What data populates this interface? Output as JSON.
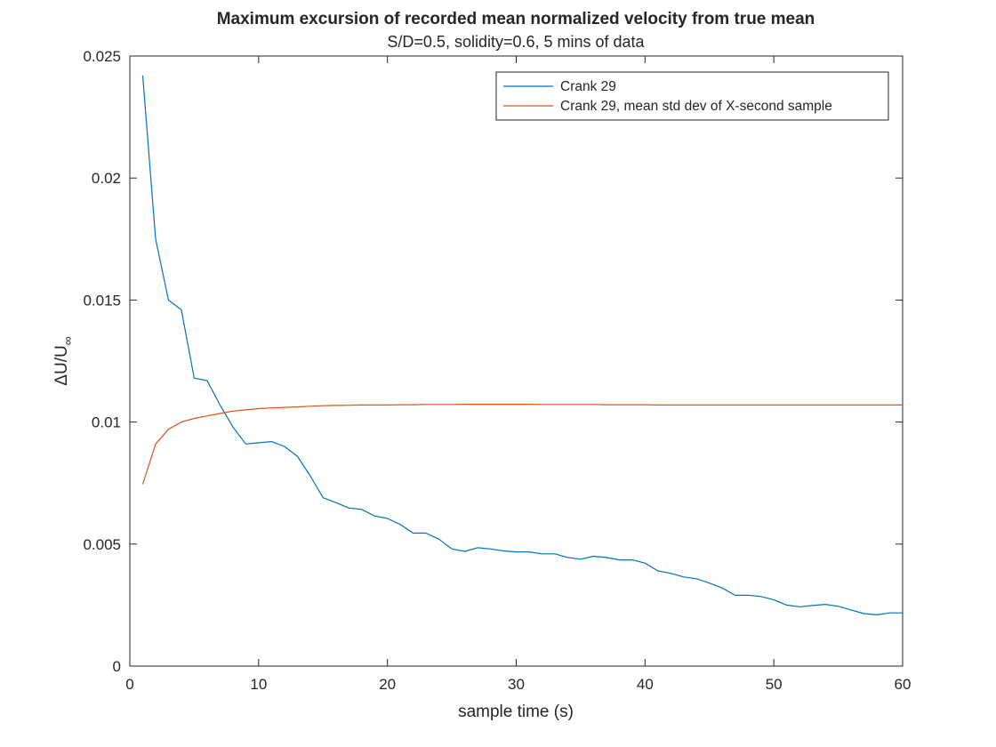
{
  "chart_data": {
    "type": "line",
    "title": "Maximum excursion of recorded mean normalized velocity from true mean",
    "subtitle": "S/D=0.5, solidity=0.6, 5 mins of data",
    "xlabel": "sample time (s)",
    "ylabel": {
      "main": "ΔU/U",
      "subscript": "∞"
    },
    "xlim": [
      0,
      60
    ],
    "ylim": [
      0,
      0.025
    ],
    "xticks": [
      0,
      10,
      20,
      30,
      40,
      50,
      60
    ],
    "yticks": [
      0,
      0.005,
      0.01,
      0.015,
      0.02,
      0.025
    ],
    "xtick_labels": [
      "0",
      "10",
      "20",
      "30",
      "40",
      "50",
      "60"
    ],
    "ytick_labels": [
      "0",
      "0.005",
      "0.01",
      "0.015",
      "0.02",
      "0.025"
    ],
    "grid": false,
    "legend_location": "top-right",
    "series": [
      {
        "name": "Crank 29",
        "color": "#0072BD",
        "x": [
          1,
          2,
          3,
          4,
          5,
          6,
          7,
          8,
          9,
          10,
          11,
          12,
          13,
          14,
          15,
          16,
          17,
          18,
          19,
          20,
          21,
          22,
          23,
          24,
          25,
          26,
          27,
          28,
          29,
          30,
          31,
          32,
          33,
          34,
          35,
          36,
          37,
          38,
          39,
          40,
          41,
          42,
          43,
          44,
          45,
          46,
          47,
          48,
          49,
          50,
          51,
          52,
          53,
          54,
          55,
          56,
          57,
          58,
          59,
          60
        ],
        "values": [
          0.0242,
          0.0175,
          0.015,
          0.0146,
          0.0118,
          0.0117,
          0.0107,
          0.0098,
          0.0091,
          0.00915,
          0.0092,
          0.009,
          0.0086,
          0.0078,
          0.0069,
          0.0067,
          0.00648,
          0.00642,
          0.00615,
          0.00605,
          0.0058,
          0.00545,
          0.00545,
          0.0052,
          0.0048,
          0.0047,
          0.00485,
          0.0048,
          0.00472,
          0.00468,
          0.00468,
          0.0046,
          0.0046,
          0.00445,
          0.00438,
          0.0045,
          0.00445,
          0.00435,
          0.00435,
          0.00422,
          0.0039,
          0.0038,
          0.00365,
          0.00358,
          0.0034,
          0.0032,
          0.0029,
          0.0029,
          0.00285,
          0.00272,
          0.0025,
          0.00243,
          0.00248,
          0.00253,
          0.00245,
          0.0023,
          0.00215,
          0.0021,
          0.00218,
          0.00218
        ]
      },
      {
        "name": "Crank 29, mean std dev of X-second sample",
        "color": "#D95319",
        "x": [
          1,
          2,
          3,
          4,
          5,
          6,
          7,
          8,
          9,
          10,
          11,
          12,
          13,
          14,
          15,
          16,
          17,
          18,
          19,
          20,
          21,
          22,
          23,
          24,
          25,
          26,
          27,
          28,
          29,
          30,
          31,
          32,
          33,
          34,
          35,
          36,
          37,
          38,
          39,
          40,
          41,
          42,
          43,
          44,
          45,
          46,
          47,
          48,
          49,
          50,
          51,
          52,
          53,
          54,
          55,
          56,
          57,
          58,
          59,
          60
        ],
        "values": [
          0.00745,
          0.0091,
          0.0097,
          0.01,
          0.01015,
          0.01025,
          0.01035,
          0.01045,
          0.0105,
          0.01055,
          0.01058,
          0.0106,
          0.01062,
          0.01065,
          0.01067,
          0.01068,
          0.01069,
          0.0107,
          0.0107,
          0.0107,
          0.01071,
          0.01071,
          0.01072,
          0.01072,
          0.01072,
          0.01073,
          0.01073,
          0.01073,
          0.01073,
          0.01073,
          0.01073,
          0.01072,
          0.01072,
          0.01072,
          0.01072,
          0.01072,
          0.01071,
          0.01071,
          0.01071,
          0.01071,
          0.0107,
          0.0107,
          0.0107,
          0.0107,
          0.0107,
          0.0107,
          0.0107,
          0.0107,
          0.0107,
          0.0107,
          0.0107,
          0.0107,
          0.0107,
          0.0107,
          0.0107,
          0.0107,
          0.0107,
          0.0107,
          0.0107,
          0.0107
        ]
      }
    ]
  }
}
